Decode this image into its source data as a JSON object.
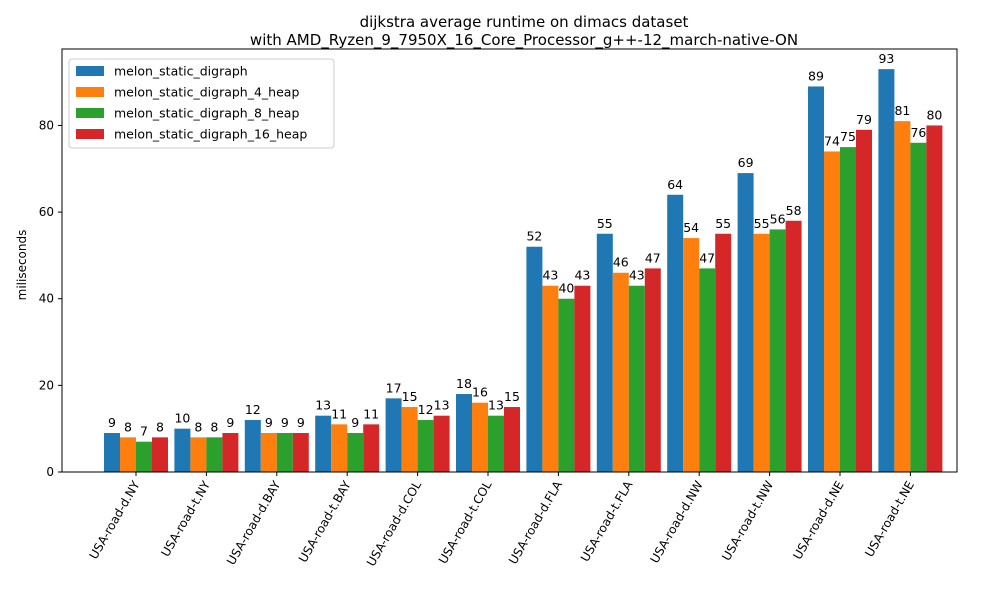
{
  "chart_data": {
    "type": "bar",
    "title": "dijkstra average runtime on dimacs dataset",
    "subtitle": "with AMD_Ryzen_9_7950X_16_Core_Processor_g++-12_march-native-ON",
    "xlabel": "",
    "ylabel": "miliseconds",
    "ylim": [
      0,
      97.65
    ],
    "yticks": [
      0,
      20,
      40,
      60,
      80
    ],
    "grid": false,
    "legend_position": "top-left",
    "categories": [
      "USA-road-d.NY",
      "USA-road-t.NY",
      "USA-road-d.BAY",
      "USA-road-t.BAY",
      "USA-road-d.COL",
      "USA-road-t.COL",
      "USA-road-d.FLA",
      "USA-road-t.FLA",
      "USA-road-d.NW",
      "USA-road-t.NW",
      "USA-road-d.NE",
      "USA-road-t.NE"
    ],
    "series": [
      {
        "name": "melon_static_digraph",
        "color": "#1f77b4",
        "values": [
          9,
          10,
          12,
          13,
          17,
          18,
          52,
          55,
          64,
          69,
          89,
          93
        ]
      },
      {
        "name": "melon_static_digraph_4_heap",
        "color": "#ff7f0e",
        "values": [
          8,
          8,
          9,
          11,
          15,
          16,
          43,
          46,
          54,
          55,
          74,
          81
        ]
      },
      {
        "name": "melon_static_digraph_8_heap",
        "color": "#2ca02c",
        "values": [
          7,
          8,
          9,
          9,
          12,
          13,
          40,
          43,
          47,
          56,
          75,
          76
        ]
      },
      {
        "name": "melon_static_digraph_16_heap",
        "color": "#d62728",
        "values": [
          8,
          9,
          9,
          11,
          13,
          15,
          43,
          47,
          55,
          58,
          79,
          80
        ]
      }
    ]
  }
}
